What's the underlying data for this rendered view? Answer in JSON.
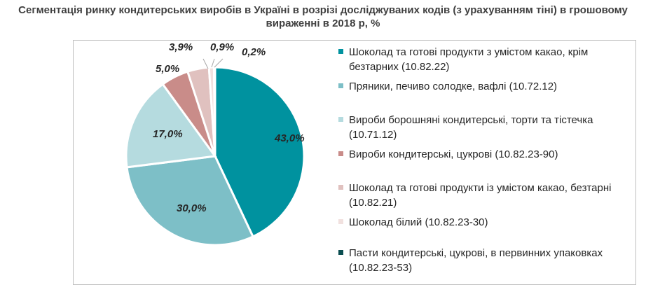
{
  "chart_data": {
    "type": "pie",
    "title": "Сегментація ринку кондитерських виробів в Україні в розрізі досліджуваних кодів (з урахуванням тіні) в грошовому вираженні в 2018 р, %",
    "slices": [
      {
        "label": "Шоколад та готові продукти з умістом какао, крім безтарних (10.82.22)",
        "value": 43.0,
        "display": "43,0%",
        "color": "#00929f"
      },
      {
        "label": "Пряники, печиво солодке, вафлі (10.72.12)",
        "value": 30.0,
        "display": "30,0%",
        "color": "#7dbfc7"
      },
      {
        "label": "Вироби борошняні кондитерські, торти та тістечка (10.71.12)",
        "value": 17.0,
        "display": "17,0%",
        "color": "#b5dbdf"
      },
      {
        "label": "Вироби кондитерські, цукрові (10.82.23-90)",
        "value": 5.0,
        "display": "5,0%",
        "color": "#c98c89"
      },
      {
        "label": "Шоколад та готові продукти із умістом какао, безтарні (10.82.21)",
        "value": 3.9,
        "display": "3,9%",
        "color": "#e0c1bf"
      },
      {
        "label": "Шоколад білий (10.82.23-30)",
        "value": 0.9,
        "display": "0,9%",
        "color": "#f1e1df"
      },
      {
        "label": "Пасти кондитерські, цукрові, в первинних упаковках (10.82.23-53)",
        "value": 0.2,
        "display": "0,2%",
        "color": "#0a4d50"
      }
    ],
    "legend_position": "right"
  }
}
